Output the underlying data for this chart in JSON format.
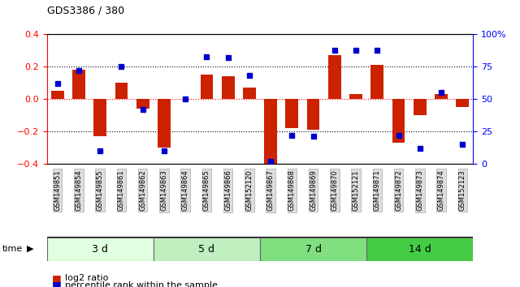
{
  "title": "GDS3386 / 380",
  "samples": [
    "GSM149851",
    "GSM149854",
    "GSM149855",
    "GSM149861",
    "GSM149862",
    "GSM149863",
    "GSM149864",
    "GSM149865",
    "GSM149866",
    "GSM152120",
    "GSM149867",
    "GSM149868",
    "GSM149869",
    "GSM149870",
    "GSM152121",
    "GSM149871",
    "GSM149872",
    "GSM149873",
    "GSM149874",
    "GSM152123"
  ],
  "log2_ratio": [
    0.05,
    0.18,
    -0.23,
    0.1,
    -0.06,
    -0.3,
    0.0,
    0.15,
    0.14,
    0.07,
    -0.42,
    -0.18,
    -0.19,
    0.27,
    0.03,
    0.21,
    -0.27,
    -0.1,
    0.03,
    -0.05
  ],
  "pct_rank": [
    62,
    72,
    10,
    75,
    42,
    10,
    50,
    83,
    82,
    68,
    2,
    22,
    21,
    88,
    88,
    88,
    22,
    12,
    55,
    15
  ],
  "groups": [
    {
      "label": "3 d",
      "start": 0,
      "end": 5,
      "color": "#e0ffe0"
    },
    {
      "label": "5 d",
      "start": 5,
      "end": 10,
      "color": "#c0f0c0"
    },
    {
      "label": "7 d",
      "start": 10,
      "end": 15,
      "color": "#80e080"
    },
    {
      "label": "14 d",
      "start": 15,
      "end": 20,
      "color": "#44cc44"
    }
  ],
  "bar_color": "#cc2200",
  "dot_color": "#0000cc",
  "bg_color": "#ffffff",
  "tick_label_bg": "#dddddd",
  "ylim_left": [
    -0.4,
    0.4
  ],
  "ylim_right": [
    0,
    100
  ],
  "yticks_left": [
    -0.4,
    -0.2,
    0.0,
    0.2,
    0.4
  ],
  "yticks_right": [
    0,
    25,
    50,
    75,
    100
  ],
  "ytick_labels_right": [
    "0",
    "25",
    "50",
    "75",
    "100%"
  ]
}
